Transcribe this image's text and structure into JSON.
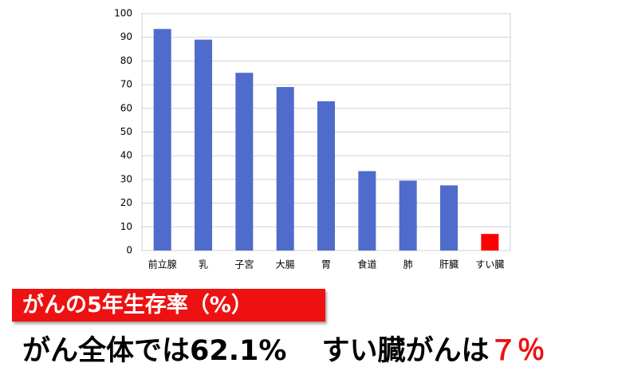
{
  "chart_data": {
    "type": "bar",
    "categories": [
      "前立腺",
      "乳",
      "子宮",
      "大腸",
      "胃",
      "食道",
      "肺",
      "肝臓",
      "すい臓"
    ],
    "values": [
      93.5,
      89,
      75,
      69,
      63,
      33.5,
      29.5,
      27.5,
      7
    ],
    "colors": [
      "#4f6bcc",
      "#4f6bcc",
      "#4f6bcc",
      "#4f6bcc",
      "#4f6bcc",
      "#4f6bcc",
      "#4f6bcc",
      "#4f6bcc",
      "#ff0000"
    ],
    "ylim": [
      0,
      100
    ],
    "yticks": [
      0,
      10,
      20,
      30,
      40,
      50,
      60,
      70,
      80,
      90,
      100
    ],
    "grid": true
  },
  "caption": {
    "label": "がんの5年生存率（%）",
    "overall": "がん全体では62.1%",
    "pancreas_prefix": "すい臓がんは",
    "pancreas_value": "７％"
  }
}
